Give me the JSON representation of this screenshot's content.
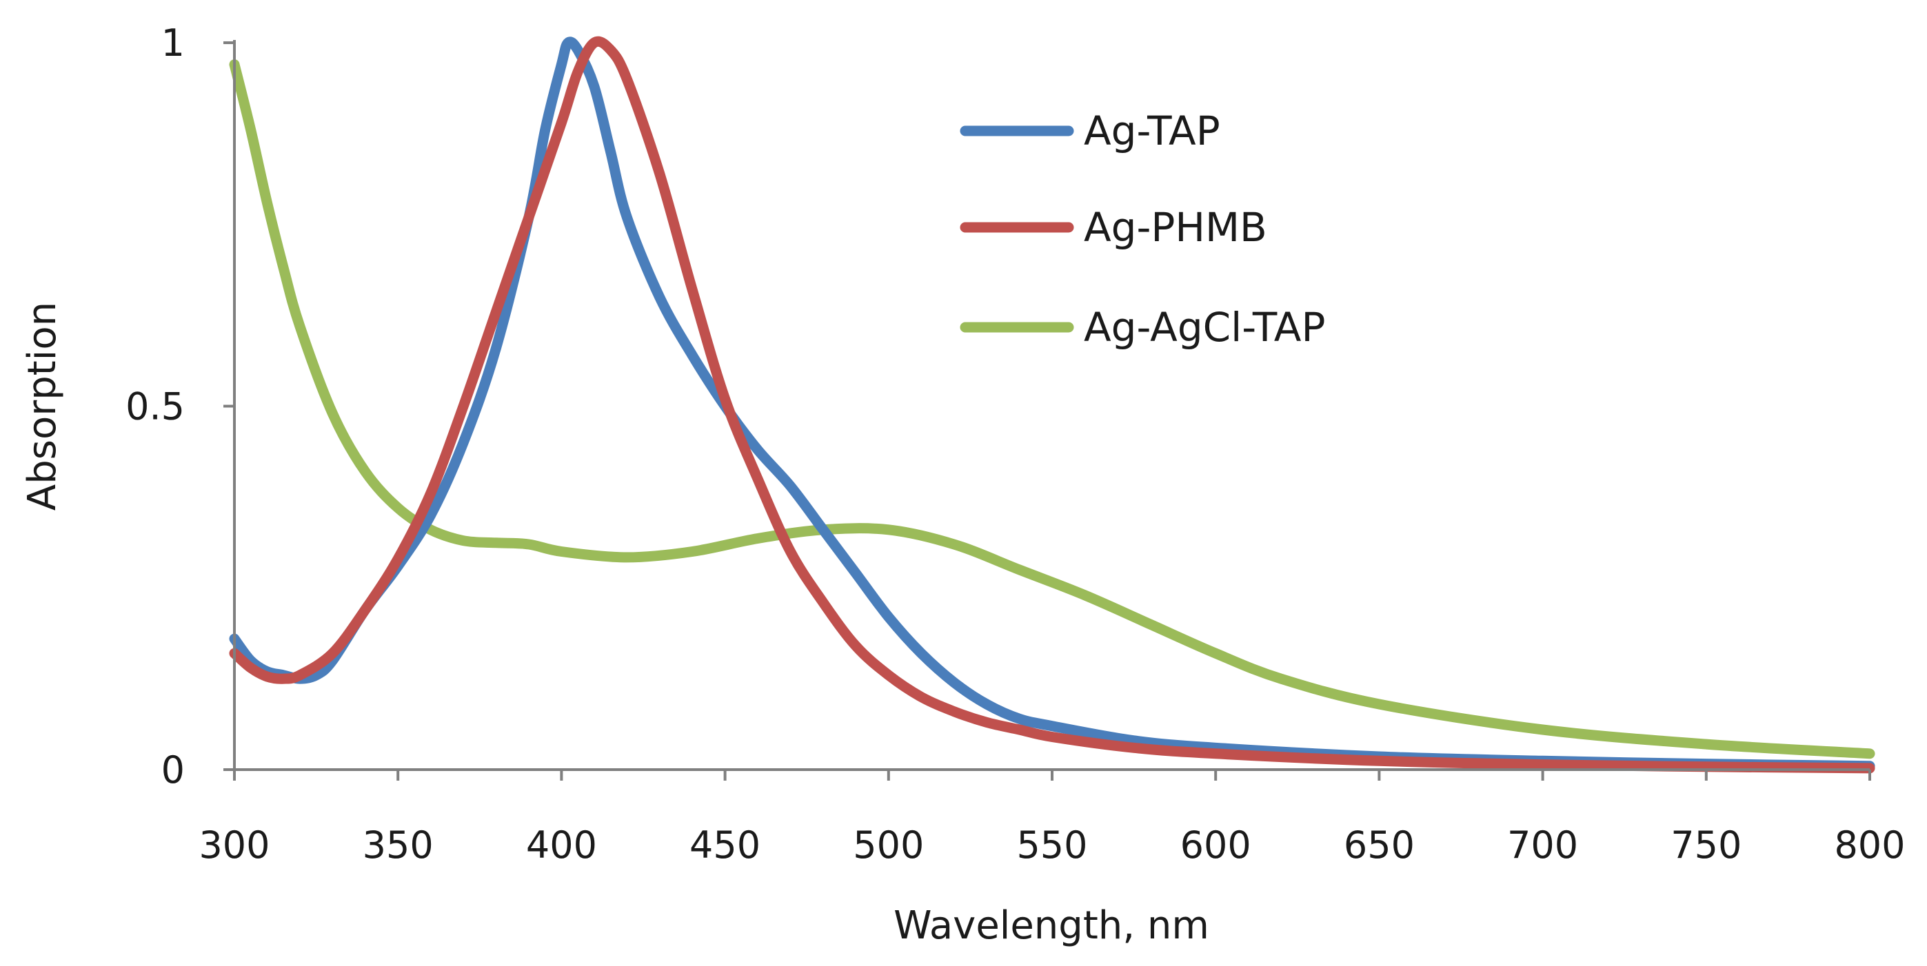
{
  "chart_data": {
    "type": "line",
    "title": "",
    "xlabel": "Wavelength, nm",
    "ylabel": "Absorption",
    "xlim": [
      300,
      800
    ],
    "ylim": [
      0,
      1
    ],
    "xticks": [
      300,
      350,
      400,
      450,
      500,
      550,
      600,
      650,
      700,
      750,
      800
    ],
    "yticks": [
      0,
      0.5,
      1
    ],
    "ytick_labels": [
      "0",
      "0.5",
      "1"
    ],
    "grid": false,
    "legend_position": "top-right",
    "series": [
      {
        "name": "Ag-TAP",
        "color": "#4a7ebb",
        "x": [
          300,
          305,
          310,
          315,
          320,
          325,
          330,
          340,
          350,
          360,
          370,
          380,
          390,
          395,
          400,
          402,
          405,
          410,
          415,
          420,
          430,
          440,
          450,
          460,
          470,
          480,
          490,
          500,
          510,
          520,
          530,
          540,
          550,
          575,
          600,
          650,
          700,
          750,
          800
        ],
        "y": [
          0.18,
          0.15,
          0.135,
          0.13,
          0.125,
          0.13,
          0.15,
          0.22,
          0.28,
          0.35,
          0.45,
          0.58,
          0.76,
          0.88,
          0.97,
          1.0,
          0.99,
          0.94,
          0.85,
          0.76,
          0.65,
          0.57,
          0.5,
          0.44,
          0.39,
          0.33,
          0.27,
          0.21,
          0.16,
          0.12,
          0.09,
          0.07,
          0.06,
          0.04,
          0.03,
          0.018,
          0.012,
          0.008,
          0.005
        ]
      },
      {
        "name": "Ag-PHMB",
        "color": "#c0504d",
        "x": [
          300,
          305,
          310,
          315,
          320,
          330,
          340,
          350,
          360,
          370,
          380,
          390,
          400,
          405,
          410,
          415,
          420,
          430,
          440,
          450,
          460,
          470,
          480,
          490,
          500,
          510,
          520,
          530,
          540,
          550,
          575,
          600,
          650,
          700,
          750,
          800
        ],
        "y": [
          0.16,
          0.14,
          0.128,
          0.125,
          0.13,
          0.16,
          0.22,
          0.29,
          0.38,
          0.5,
          0.63,
          0.76,
          0.89,
          0.96,
          1.0,
          0.99,
          0.95,
          0.82,
          0.66,
          0.51,
          0.4,
          0.3,
          0.23,
          0.17,
          0.13,
          0.1,
          0.08,
          0.065,
          0.055,
          0.045,
          0.03,
          0.022,
          0.012,
          0.007,
          0.004,
          0.002
        ]
      },
      {
        "name": "Ag-AgCl-TAP",
        "color": "#9bbb59",
        "x": [
          300,
          305,
          310,
          315,
          320,
          330,
          340,
          350,
          360,
          370,
          380,
          390,
          400,
          420,
          440,
          460,
          480,
          500,
          520,
          540,
          560,
          580,
          600,
          620,
          650,
          700,
          750,
          800
        ],
        "y": [
          0.97,
          0.88,
          0.78,
          0.69,
          0.61,
          0.49,
          0.41,
          0.36,
          0.33,
          0.315,
          0.312,
          0.31,
          0.3,
          0.292,
          0.3,
          0.318,
          0.33,
          0.33,
          0.31,
          0.275,
          0.24,
          0.2,
          0.16,
          0.125,
          0.09,
          0.055,
          0.035,
          0.022
        ]
      }
    ]
  }
}
